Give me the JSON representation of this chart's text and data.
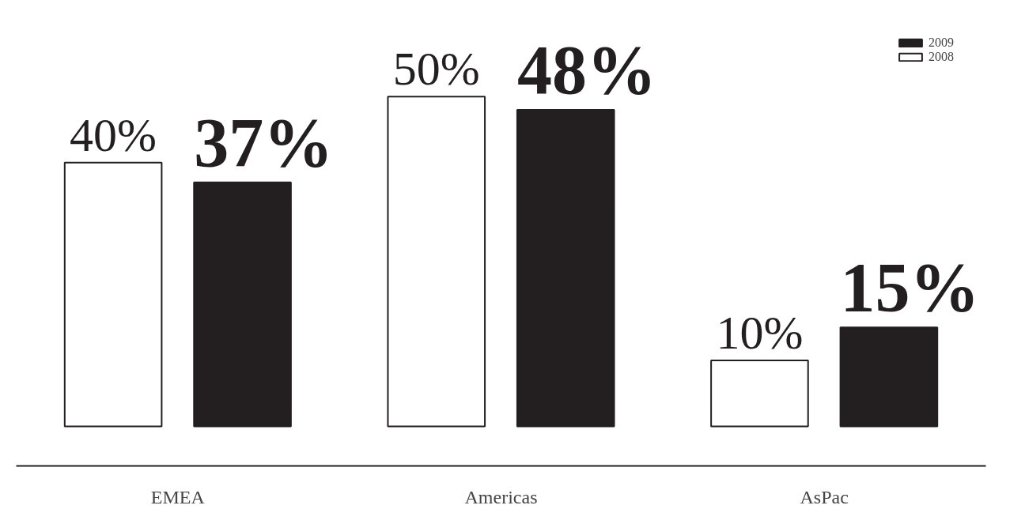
{
  "chart_data": {
    "type": "bar",
    "categories": [
      "EMEA",
      "Americas",
      "AsPac"
    ],
    "series": [
      {
        "name": "2008",
        "color": "#ffffff",
        "values": [
          40,
          50,
          10
        ],
        "value_labels": [
          "40%",
          "50%",
          "10%"
        ]
      },
      {
        "name": "2009",
        "color": "#231f20",
        "values": [
          37,
          48,
          15
        ],
        "value_labels": [
          "37%",
          "48%",
          "15%"
        ]
      }
    ],
    "legend": "top right",
    "grid": false
  }
}
